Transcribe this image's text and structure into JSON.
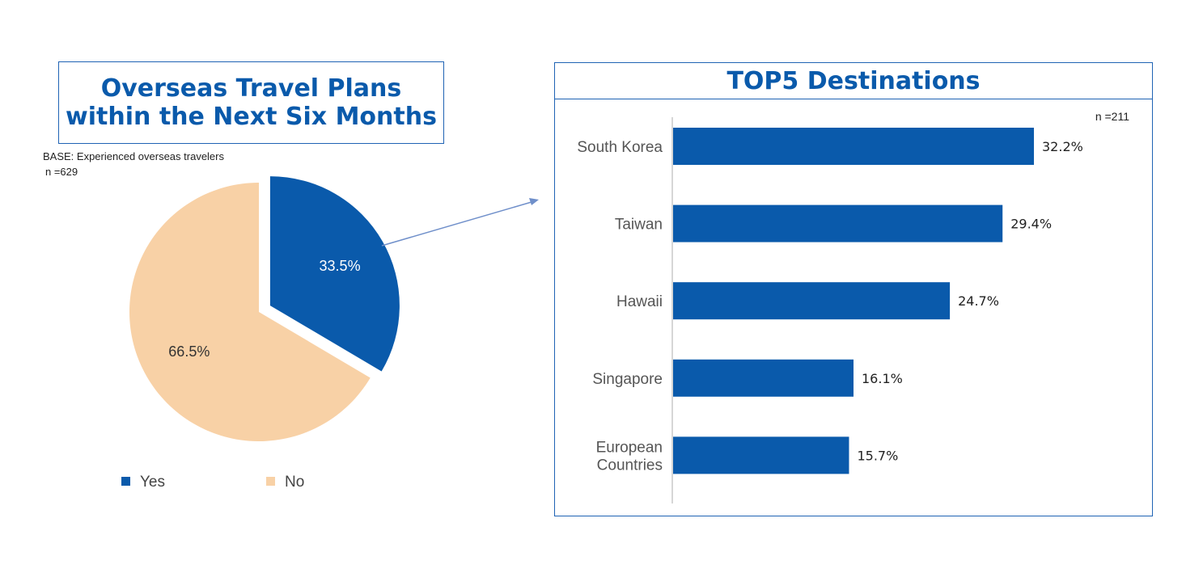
{
  "pie": {
    "title": "Overseas Travel Plans\nwithin the Next Six Months",
    "base_note": "BASE: Experienced overseas travelers",
    "n_note": "n =629"
  },
  "bars": {
    "title": "TOP5 Destinations",
    "n_note": "n =211"
  },
  "colors": {
    "blue": "#0a5aab",
    "peach": "#f8d1a6",
    "frame": "#1f63b4",
    "arrow": "#6f8fca"
  },
  "chart_data": [
    {
      "type": "pie",
      "title": "Overseas Travel Plans within the Next Six Months",
      "slices": [
        {
          "label": "Yes",
          "value": 33.5,
          "value_label": "33.5%",
          "color": "#0a5aab",
          "exploded": true
        },
        {
          "label": "No",
          "value": 66.5,
          "value_label": "66.5%",
          "color": "#f8d1a6",
          "exploded": false
        }
      ],
      "legend": {
        "placement": "bottom",
        "entries": [
          "Yes",
          "No"
        ]
      }
    },
    {
      "type": "bar",
      "orientation": "horizontal",
      "title": "TOP5 Destinations",
      "categories": [
        "South Korea",
        "Taiwan",
        "Hawaii",
        "Singapore",
        "European Countries"
      ],
      "category_lines": [
        [
          "South Korea"
        ],
        [
          "Taiwan"
        ],
        [
          "Hawaii"
        ],
        [
          "Singapore"
        ],
        [
          "European",
          "Countries"
        ]
      ],
      "values": [
        32.2,
        29.4,
        24.7,
        16.1,
        15.7
      ],
      "value_labels": [
        "32.2%",
        "29.4%",
        "24.7%",
        "16.1%",
        "15.7%"
      ],
      "xlim": [
        0,
        40
      ],
      "grid": false,
      "color": "#0a5aab"
    }
  ]
}
